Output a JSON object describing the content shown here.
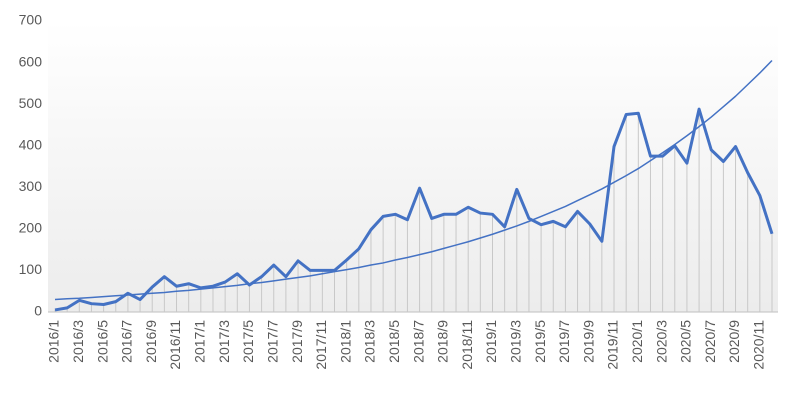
{
  "chart_data": {
    "type": "line",
    "categories": [
      "2016/1",
      null,
      "2016/3",
      null,
      "2016/5",
      null,
      "2016/7",
      null,
      "2016/9",
      null,
      "2016/11",
      null,
      "2017/1",
      null,
      "2017/3",
      null,
      "2017/5",
      null,
      "2017/7",
      null,
      "2017/9",
      null,
      "2017/11",
      null,
      "2018/1",
      null,
      "2018/3",
      null,
      "2018/5",
      null,
      "2018/7",
      null,
      "2018/9",
      null,
      "2018/11",
      null,
      "2019/1",
      null,
      "2019/3",
      null,
      "2019/5",
      null,
      "2019/7",
      null,
      "2019/9",
      null,
      "2019/11",
      null,
      "2020/1",
      null,
      "2020/3",
      null,
      "2020/5",
      null,
      "2020/7",
      null,
      "2020/9",
      null,
      "2020/11",
      null
    ],
    "series": [
      {
        "color": "#4472c4",
        "line_width": 3,
        "drop_lines": true,
        "values": [
          5,
          10,
          28,
          20,
          18,
          25,
          45,
          30,
          60,
          85,
          62,
          68,
          58,
          62,
          72,
          92,
          65,
          85,
          113,
          85,
          123,
          100,
          100,
          100,
          125,
          152,
          198,
          230,
          235,
          222,
          298,
          225,
          235,
          235,
          252,
          238,
          235,
          205,
          295,
          225,
          210,
          218,
          205,
          242,
          212,
          170,
          398,
          475,
          478,
          375,
          375,
          400,
          358,
          488,
          390,
          362,
          398,
          335,
          280,
          188
        ]
      },
      {
        "color": "#4472c4",
        "line_width": 1.5,
        "drop_lines": false,
        "values": [
          30,
          32,
          33,
          35,
          37,
          39,
          41,
          43,
          45,
          47,
          50,
          52,
          55,
          58,
          61,
          64,
          68,
          71,
          75,
          79,
          83,
          87,
          92,
          97,
          102,
          107,
          113,
          118,
          125,
          131,
          138,
          145,
          153,
          161,
          169,
          178,
          187,
          197,
          207,
          218,
          230,
          242,
          254,
          268,
          282,
          296,
          312,
          328,
          345,
          364,
          383,
          403,
          424,
          446,
          469,
          494,
          519,
          547,
          575,
          605
        ]
      }
    ],
    "ylim": [
      0,
      700
    ],
    "yticks": [
      0,
      100,
      200,
      300,
      400,
      500,
      600,
      700
    ],
    "grid": false
  }
}
